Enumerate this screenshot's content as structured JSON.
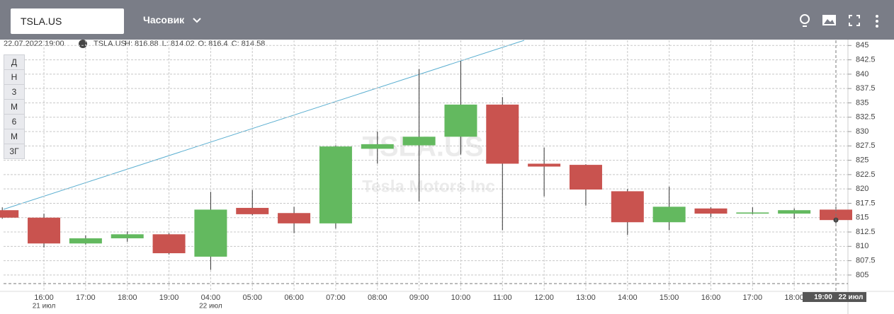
{
  "ui": {
    "symbol_input": "TSLA.US",
    "interval": "Часовик",
    "period_buttons": [
      "Д",
      "Н",
      "3",
      "М",
      "6",
      "М",
      "3Г"
    ]
  },
  "chart_data": {
    "type": "candlestick",
    "info": {
      "datetime": "22.07.2022 19:00",
      "symbol": "TSLA.US",
      "labels": [
        "H:",
        "L:",
        "O:",
        "C:"
      ]
    },
    "watermark": {
      "title": "TSLA.US",
      "subtitle": "Tesla Motors Inc"
    },
    "categories": [
      null,
      "16:00",
      "17:00",
      "18:00",
      "19:00",
      "04:00",
      "05:00",
      "06:00",
      "07:00",
      "08:00",
      "09:00",
      "10:00",
      "11:00",
      "12:00",
      "13:00",
      "14:00",
      "15:00",
      "16:00",
      "17:00",
      "18:00",
      "19:00"
    ],
    "date_labels": [
      null,
      "21 июл",
      null,
      null,
      null,
      "22 июл",
      null,
      null,
      null,
      null,
      null,
      null,
      null,
      null,
      null,
      null,
      null,
      null,
      null,
      null,
      "22 июл"
    ],
    "open": [
      816.3,
      815.0,
      810.5,
      811.4,
      812.1,
      808.2,
      816.7,
      815.8,
      814.0,
      827.0,
      827.6,
      829.1,
      834.7,
      824.4,
      824.2,
      819.6,
      814.2,
      816.6,
      815.7,
      815.7,
      816.4
    ],
    "high": [
      816.8,
      815.7,
      811.9,
      812.6,
      812.3,
      819.5,
      819.8,
      816.9,
      827.6,
      830.0,
      840.9,
      842.3,
      836.0,
      827.2,
      824.3,
      820.0,
      820.4,
      816.8,
      816.8,
      816.6,
      816.88
    ],
    "low": [
      814.8,
      809.8,
      810.3,
      810.8,
      808.6,
      805.9,
      815.4,
      812.3,
      813.1,
      824.4,
      817.8,
      826.0,
      812.8,
      818.7,
      817.1,
      812.0,
      812.8,
      815.1,
      815.6,
      814.8,
      814.02
    ],
    "close": [
      815.0,
      810.5,
      811.4,
      812.1,
      808.8,
      816.4,
      815.6,
      814.0,
      827.4,
      827.8,
      829.1,
      834.7,
      824.4,
      823.9,
      819.9,
      814.2,
      816.9,
      815.7,
      815.9,
      816.3,
      814.58
    ],
    "up_color": "#63b95f",
    "down_color": "#c9534f",
    "ylim": [
      802.4,
      845.9
    ],
    "yticks": [
      805,
      807.5,
      810,
      812.5,
      815,
      817.5,
      820,
      822.5,
      825,
      827.5,
      830,
      832.5,
      835,
      837.5,
      840,
      842.5,
      845
    ],
    "grid": true
  }
}
